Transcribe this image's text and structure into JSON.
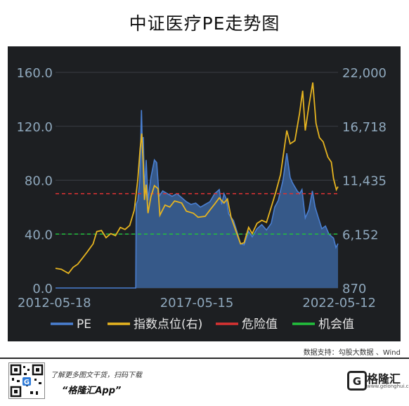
{
  "title": "中证医疗PE走势图",
  "source": "数据支持：勾股大数据 、Wind",
  "promo_line1": "了解更多图文干货，扫码下载",
  "promo_line2": "“格隆汇App”",
  "logo_text": "格隆汇",
  "logo_sub": "www.gelonghui.com",
  "chart_data": {
    "type": "line",
    "x_start": "2012-05-18",
    "x_end": "2022-05-12",
    "x_ticks": [
      "2012-05-18",
      "2017-05-15",
      "2022-05-12"
    ],
    "y_left_ticks": [
      "0.0",
      "40.0",
      "80.0",
      "120.0",
      "160.0"
    ],
    "y_left_lim": [
      0,
      160
    ],
    "y_right_ticks": [
      "870",
      "6,152",
      "11,435",
      "16,718",
      "22,000"
    ],
    "y_right_lim": [
      870,
      22000
    ],
    "grid": true,
    "legend_position": "bottom",
    "colors": {
      "pe": "#4a7fd1",
      "pe_fill": "#3a5f95",
      "index": "#e6b420",
      "danger": "#d83232",
      "opportunity": "#22c03c",
      "background": "#1d1f22",
      "axis_text": "#8fa8bd"
    },
    "series": [
      {
        "name": "PE",
        "axis": "left",
        "points": [
          [
            "2012-05-18",
            0
          ],
          [
            "2013-05-01",
            0
          ],
          [
            "2014-05-01",
            0
          ],
          [
            "2015-03-01",
            0
          ],
          [
            "2015-03-20",
            0
          ],
          [
            "2015-03-25",
            62
          ],
          [
            "2015-04-15",
            65
          ],
          [
            "2015-05-10",
            80
          ],
          [
            "2015-06-01",
            132
          ],
          [
            "2015-06-15",
            100
          ],
          [
            "2015-06-25",
            112
          ],
          [
            "2015-07-10",
            72
          ],
          [
            "2015-08-01",
            95
          ],
          [
            "2015-08-25",
            65
          ],
          [
            "2015-10-01",
            82
          ],
          [
            "2015-11-15",
            95
          ],
          [
            "2015-12-15",
            93
          ],
          [
            "2016-01-15",
            68
          ],
          [
            "2016-03-01",
            72
          ],
          [
            "2016-05-01",
            70
          ],
          [
            "2016-07-01",
            68
          ],
          [
            "2016-09-01",
            70
          ],
          [
            "2016-11-01",
            67
          ],
          [
            "2017-01-01",
            64
          ],
          [
            "2017-03-01",
            62
          ],
          [
            "2017-05-01",
            63
          ],
          [
            "2017-07-01",
            60
          ],
          [
            "2017-09-01",
            62
          ],
          [
            "2017-11-01",
            64
          ],
          [
            "2018-01-01",
            70
          ],
          [
            "2018-03-01",
            73
          ],
          [
            "2018-04-01",
            62
          ],
          [
            "2018-05-01",
            70
          ],
          [
            "2018-06-01",
            66
          ],
          [
            "2018-07-01",
            55
          ],
          [
            "2018-09-01",
            50
          ],
          [
            "2018-10-15",
            42
          ],
          [
            "2018-12-01",
            33
          ],
          [
            "2019-01-15",
            32
          ],
          [
            "2019-03-15",
            42
          ],
          [
            "2019-05-01",
            38
          ],
          [
            "2019-07-01",
            44
          ],
          [
            "2019-09-01",
            47
          ],
          [
            "2019-11-01",
            43
          ],
          [
            "2020-01-01",
            48
          ],
          [
            "2020-02-15",
            60
          ],
          [
            "2020-04-01",
            65
          ],
          [
            "2020-06-01",
            80
          ],
          [
            "2020-07-20",
            100
          ],
          [
            "2020-09-01",
            82
          ],
          [
            "2020-10-01",
            78
          ],
          [
            "2020-11-01",
            75
          ],
          [
            "2020-12-01",
            72
          ],
          [
            "2021-01-01",
            70
          ],
          [
            "2021-02-01",
            73
          ],
          [
            "2021-03-15",
            52
          ],
          [
            "2021-05-01",
            58
          ],
          [
            "2021-06-15",
            72
          ],
          [
            "2021-07-20",
            60
          ],
          [
            "2021-09-01",
            52
          ],
          [
            "2021-10-15",
            44
          ],
          [
            "2021-12-01",
            46
          ],
          [
            "2022-01-15",
            40
          ],
          [
            "2022-03-15",
            37
          ],
          [
            "2022-04-15",
            30
          ],
          [
            "2022-05-12",
            33
          ]
        ]
      },
      {
        "name": "指数点位(右)",
        "axis": "right",
        "points": [
          [
            "2012-05-18",
            2800
          ],
          [
            "2012-08-01",
            2700
          ],
          [
            "2012-11-01",
            2300
          ],
          [
            "2013-01-01",
            2900
          ],
          [
            "2013-03-01",
            3200
          ],
          [
            "2013-05-01",
            3800
          ],
          [
            "2013-07-01",
            4400
          ],
          [
            "2013-09-15",
            5200
          ],
          [
            "2013-11-01",
            6400
          ],
          [
            "2014-01-01",
            6500
          ],
          [
            "2014-03-01",
            5800
          ],
          [
            "2014-05-01",
            6200
          ],
          [
            "2014-07-01",
            6000
          ],
          [
            "2014-09-01",
            6800
          ],
          [
            "2014-11-01",
            6600
          ],
          [
            "2015-01-01",
            7000
          ],
          [
            "2015-03-01",
            8500
          ],
          [
            "2015-04-15",
            11500
          ],
          [
            "2015-05-15",
            14500
          ],
          [
            "2015-06-05",
            16000
          ],
          [
            "2015-06-25",
            13000
          ],
          [
            "2015-07-10",
            9500
          ],
          [
            "2015-08-01",
            11000
          ],
          [
            "2015-08-25",
            8200
          ],
          [
            "2015-10-01",
            9800
          ],
          [
            "2015-11-15",
            10900
          ],
          [
            "2016-01-01",
            10600
          ],
          [
            "2016-01-25",
            8000
          ],
          [
            "2016-04-01",
            9000
          ],
          [
            "2016-06-01",
            8800
          ],
          [
            "2016-08-01",
            9400
          ],
          [
            "2016-11-01",
            9200
          ],
          [
            "2017-01-01",
            8400
          ],
          [
            "2017-04-01",
            8200
          ],
          [
            "2017-06-01",
            7800
          ],
          [
            "2017-09-01",
            7900
          ],
          [
            "2017-11-01",
            8500
          ],
          [
            "2018-01-01",
            9100
          ],
          [
            "2018-03-01",
            9700
          ],
          [
            "2018-05-01",
            9200
          ],
          [
            "2018-06-15",
            9600
          ],
          [
            "2018-08-01",
            7800
          ],
          [
            "2018-10-15",
            6200
          ],
          [
            "2018-12-01",
            5200
          ],
          [
            "2019-01-15",
            5300
          ],
          [
            "2019-03-15",
            6800
          ],
          [
            "2019-05-01",
            6200
          ],
          [
            "2019-07-01",
            7200
          ],
          [
            "2019-09-01",
            7500
          ],
          [
            "2019-11-01",
            7300
          ],
          [
            "2020-01-01",
            8800
          ],
          [
            "2020-03-01",
            10300
          ],
          [
            "2020-05-01",
            12000
          ],
          [
            "2020-07-20",
            16300
          ],
          [
            "2020-09-01",
            15000
          ],
          [
            "2020-11-01",
            15300
          ],
          [
            "2021-01-01",
            18000
          ],
          [
            "2021-02-10",
            20200
          ],
          [
            "2021-03-15",
            16300
          ],
          [
            "2021-05-01",
            18700
          ],
          [
            "2021-06-20",
            21000
          ],
          [
            "2021-08-01",
            17000
          ],
          [
            "2021-09-15",
            15600
          ],
          [
            "2021-11-01",
            15200
          ],
          [
            "2022-01-01",
            13700
          ],
          [
            "2022-02-15",
            13200
          ],
          [
            "2022-03-15",
            11600
          ],
          [
            "2022-04-20",
            10500
          ],
          [
            "2022-05-12",
            10800
          ]
        ]
      }
    ],
    "reference_lines": [
      {
        "name": "危险值",
        "axis": "left",
        "value": 70
      },
      {
        "name": "机会值",
        "axis": "left",
        "value": 40
      }
    ],
    "legend": [
      "PE",
      "指数点位(右)",
      "危险值",
      "机会值"
    ]
  }
}
